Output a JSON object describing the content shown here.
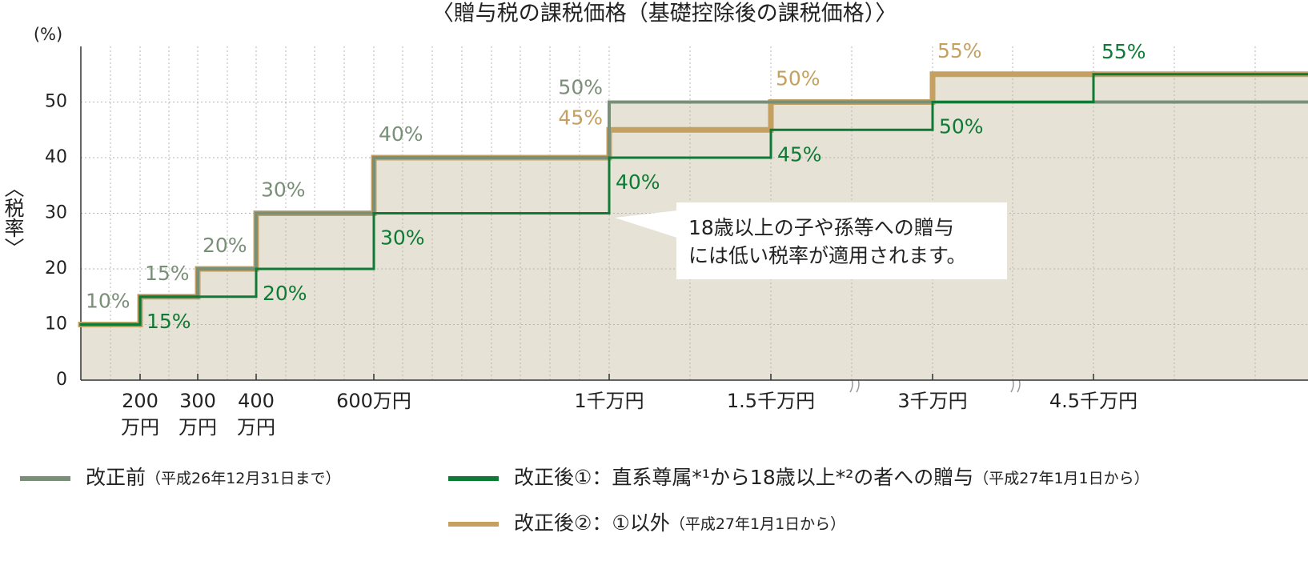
{
  "chart_data": {
    "type": "step",
    "title": "〈贈与税の課税価格（基礎控除後の課税価格）〉",
    "y_unit": "(%)",
    "y_label": "〈税率〉",
    "ylim": [
      0,
      60
    ],
    "yticks": [
      0,
      10,
      20,
      30,
      40,
      50
    ],
    "grid": true,
    "xtick_labels": [
      [
        "200",
        "万円"
      ],
      [
        "300",
        "万円"
      ],
      [
        "400",
        "万円"
      ],
      [
        "600万円"
      ],
      [
        "1千万円"
      ],
      [
        "1.5千万円"
      ],
      [
        "3千万円"
      ],
      [
        "4.5千万円"
      ]
    ],
    "series": [
      {
        "name": "改正後②：①以外",
        "period": "（平成27年1月1日から）",
        "color": "#c4a061",
        "values": [
          10,
          15,
          20,
          30,
          40,
          45,
          50,
          55,
          55
        ],
        "value_labels": [
          null,
          null,
          null,
          null,
          null,
          "45%",
          "50%",
          "55%",
          null
        ]
      },
      {
        "name": "改正前",
        "period": "（平成26年12月31日まで）",
        "color": "#7a8f78",
        "values": [
          10,
          15,
          20,
          30,
          40,
          50,
          50,
          50,
          50
        ],
        "value_labels": [
          "10%",
          "15%",
          "20%",
          "30%",
          "40%",
          "50%",
          null,
          null,
          null
        ]
      },
      {
        "name": "改正後①：直系尊属*¹から18歳以上*²の者への贈与",
        "period": "（平成27年1月1日から）",
        "color": "#0e7a35",
        "values": [
          10,
          15,
          15,
          20,
          30,
          40,
          45,
          50,
          55
        ],
        "value_labels": [
          null,
          "15%",
          null,
          "20%",
          "30%",
          "40%",
          "45%",
          "50%",
          "55%"
        ]
      }
    ],
    "callout": [
      "18歳以上の子や孫等への贈与",
      "には低い税率が適用されます。"
    ]
  }
}
